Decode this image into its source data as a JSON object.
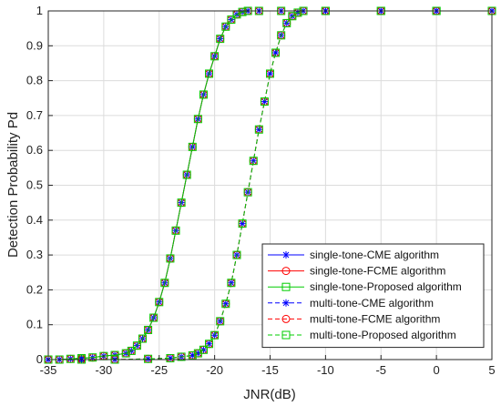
{
  "chart_data": {
    "type": "line",
    "title": "",
    "xlabel": "JNR(dB)",
    "ylabel": "Detection Probability Pd",
    "xlim": [
      -35,
      5
    ],
    "ylim": [
      0,
      1
    ],
    "xticks": [
      "-35",
      "-30",
      "-25",
      "-20",
      "-15",
      "-10",
      "-5",
      "0",
      "5"
    ],
    "yticks": [
      "0",
      "0.1",
      "0.2",
      "0.3",
      "0.4",
      "0.5",
      "0.6",
      "0.7",
      "0.8",
      "0.9",
      "1"
    ],
    "grid": true,
    "legend_position": "bottom-right",
    "series": [
      {
        "name": "single-tone-CME algorithm",
        "color": "#0000ff",
        "line": "solid",
        "marker": "asterisk",
        "x": [
          -35,
          -34,
          -33,
          -32,
          -31,
          -30,
          -29,
          -28,
          -27.5,
          -27,
          -26.5,
          -26,
          -25.5,
          -25,
          -24.5,
          -24,
          -23.5,
          -23,
          -22.5,
          -22,
          -21.5,
          -21,
          -20.5,
          -20,
          -19.5,
          -19,
          -18.5,
          -18,
          -17.5,
          -17,
          -16,
          -14,
          -10,
          -5,
          0,
          5
        ],
        "y": [
          0,
          0,
          0.002,
          0.004,
          0.006,
          0.01,
          0.013,
          0.018,
          0.025,
          0.04,
          0.06,
          0.085,
          0.12,
          0.165,
          0.22,
          0.29,
          0.37,
          0.45,
          0.53,
          0.61,
          0.69,
          0.76,
          0.82,
          0.87,
          0.92,
          0.955,
          0.975,
          0.99,
          0.997,
          1,
          1,
          1,
          1,
          1,
          1,
          1
        ]
      },
      {
        "name": "single-tone-FCME algorithm",
        "color": "#ff0000",
        "line": "solid",
        "marker": "circle",
        "x": [
          -35,
          -34,
          -33,
          -32,
          -31,
          -30,
          -29,
          -28,
          -27.5,
          -27,
          -26.5,
          -26,
          -25.5,
          -25,
          -24.5,
          -24,
          -23.5,
          -23,
          -22.5,
          -22,
          -21.5,
          -21,
          -20.5,
          -20,
          -19.5,
          -19,
          -18.5,
          -18,
          -17.5,
          -17,
          -16,
          -14,
          -10,
          -5,
          0,
          5
        ],
        "y": [
          0,
          0,
          0.002,
          0.004,
          0.006,
          0.01,
          0.013,
          0.018,
          0.025,
          0.04,
          0.06,
          0.085,
          0.12,
          0.165,
          0.22,
          0.29,
          0.37,
          0.45,
          0.53,
          0.61,
          0.69,
          0.76,
          0.82,
          0.87,
          0.92,
          0.955,
          0.975,
          0.99,
          0.997,
          1,
          1,
          1,
          1,
          1,
          1,
          1
        ]
      },
      {
        "name": "single-tone-Proposed algorithm",
        "color": "#00cc00",
        "line": "solid",
        "marker": "square",
        "x": [
          -35,
          -34,
          -33,
          -32,
          -31,
          -30,
          -29,
          -28,
          -27.5,
          -27,
          -26.5,
          -26,
          -25.5,
          -25,
          -24.5,
          -24,
          -23.5,
          -23,
          -22.5,
          -22,
          -21.5,
          -21,
          -20.5,
          -20,
          -19.5,
          -19,
          -18.5,
          -18,
          -17.5,
          -17,
          -16,
          -14,
          -10,
          -5,
          0,
          5
        ],
        "y": [
          0,
          0,
          0.002,
          0.004,
          0.006,
          0.01,
          0.013,
          0.018,
          0.025,
          0.04,
          0.06,
          0.085,
          0.12,
          0.165,
          0.22,
          0.29,
          0.37,
          0.45,
          0.53,
          0.61,
          0.69,
          0.76,
          0.82,
          0.87,
          0.92,
          0.955,
          0.975,
          0.99,
          0.997,
          1,
          1,
          1,
          1,
          1,
          1,
          1
        ]
      },
      {
        "name": "multi-tone-CME algorithm",
        "color": "#0000ff",
        "line": "dashed",
        "marker": "asterisk",
        "x": [
          -35,
          -32,
          -29,
          -26,
          -24,
          -23,
          -22,
          -21.5,
          -21,
          -20.5,
          -20,
          -19.5,
          -19,
          -18.5,
          -18,
          -17.5,
          -17,
          -16.5,
          -16,
          -15.5,
          -15,
          -14.5,
          -14,
          -13.5,
          -13,
          -12.5,
          -12,
          -10,
          -5,
          0,
          5
        ],
        "y": [
          0,
          0,
          0,
          0.002,
          0.004,
          0.008,
          0.012,
          0.018,
          0.028,
          0.045,
          0.07,
          0.11,
          0.16,
          0.22,
          0.3,
          0.39,
          0.48,
          0.57,
          0.66,
          0.74,
          0.82,
          0.88,
          0.93,
          0.965,
          0.985,
          0.995,
          1,
          1,
          1,
          1,
          1
        ]
      },
      {
        "name": "multi-tone-FCME algorithm",
        "color": "#ff0000",
        "line": "dashed",
        "marker": "circle",
        "x": [
          -35,
          -32,
          -29,
          -26,
          -24,
          -23,
          -22,
          -21.5,
          -21,
          -20.5,
          -20,
          -19.5,
          -19,
          -18.5,
          -18,
          -17.5,
          -17,
          -16.5,
          -16,
          -15.5,
          -15,
          -14.5,
          -14,
          -13.5,
          -13,
          -12.5,
          -12,
          -10,
          -5,
          0,
          5
        ],
        "y": [
          0,
          0,
          0,
          0.002,
          0.004,
          0.008,
          0.012,
          0.018,
          0.028,
          0.045,
          0.07,
          0.11,
          0.16,
          0.22,
          0.3,
          0.39,
          0.48,
          0.57,
          0.66,
          0.74,
          0.82,
          0.88,
          0.93,
          0.965,
          0.985,
          0.995,
          1,
          1,
          1,
          1,
          1
        ]
      },
      {
        "name": "multi-tone-Proposed algorithm",
        "color": "#00cc00",
        "line": "dashed",
        "marker": "square",
        "x": [
          -35,
          -32,
          -29,
          -26,
          -24,
          -23,
          -22,
          -21.5,
          -21,
          -20.5,
          -20,
          -19.5,
          -19,
          -18.5,
          -18,
          -17.5,
          -17,
          -16.5,
          -16,
          -15.5,
          -15,
          -14.5,
          -14,
          -13.5,
          -13,
          -12.5,
          -12,
          -10,
          -5,
          0,
          5
        ],
        "y": [
          0,
          0,
          0,
          0.002,
          0.004,
          0.008,
          0.012,
          0.018,
          0.028,
          0.045,
          0.07,
          0.11,
          0.16,
          0.22,
          0.3,
          0.39,
          0.48,
          0.57,
          0.66,
          0.74,
          0.82,
          0.88,
          0.93,
          0.965,
          0.985,
          0.995,
          1,
          1,
          1,
          1,
          1
        ]
      }
    ]
  }
}
